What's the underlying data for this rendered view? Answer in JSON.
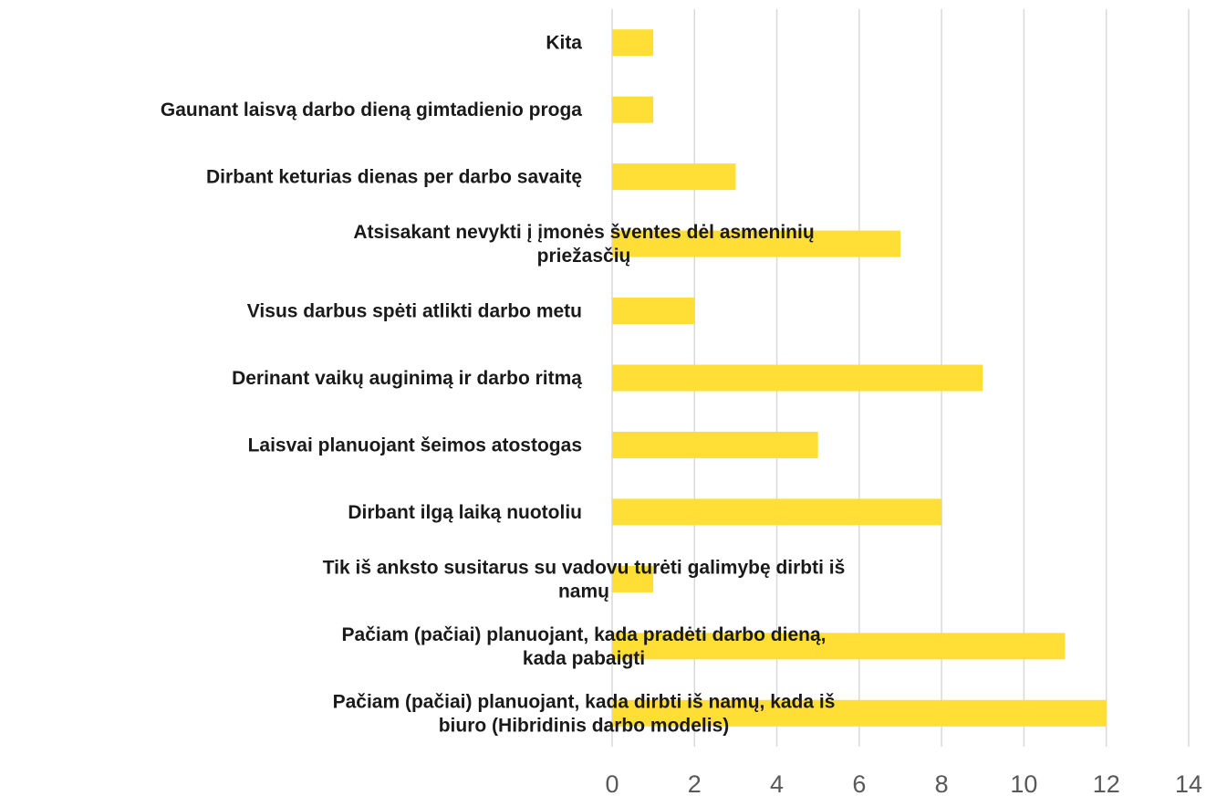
{
  "chart_data": {
    "type": "bar",
    "orientation": "horizontal",
    "categories": [
      [
        "Kita"
      ],
      [
        "Gaunant laisvą darbo dieną gimtadienio proga"
      ],
      [
        "Dirbant keturias dienas per darbo savaitę"
      ],
      [
        "Atsisakant nevykti į įmonės šventes dėl asmeninių",
        "priežasčių"
      ],
      [
        "Visus darbus spėti atlikti darbo metu"
      ],
      [
        "Derinant vaikų auginimą ir darbo ritmą"
      ],
      [
        "Laisvai planuojant šeimos atostogas"
      ],
      [
        "Dirbant ilgą laiką nuotoliu"
      ],
      [
        "Tik iš anksto susitarus su vadovu turėti galimybę dirbti iš",
        "namų"
      ],
      [
        "Pačiam (pačiai) planuojant, kada pradėti darbo dieną,",
        "kada pabaigti"
      ],
      [
        "Pačiam (pačiai) planuojant, kada dirbti iš namų, kada iš",
        "biuro (Hibridinis darbo modelis)"
      ]
    ],
    "values": [
      1,
      1,
      3,
      7,
      2,
      9,
      5,
      8,
      1,
      11,
      12
    ],
    "xlim": [
      0,
      14
    ],
    "xticks": [
      "0",
      "2",
      "4",
      "6",
      "8",
      "10",
      "12",
      "14"
    ],
    "bar_color": "#ffde35",
    "grid": true,
    "legend": "none"
  }
}
